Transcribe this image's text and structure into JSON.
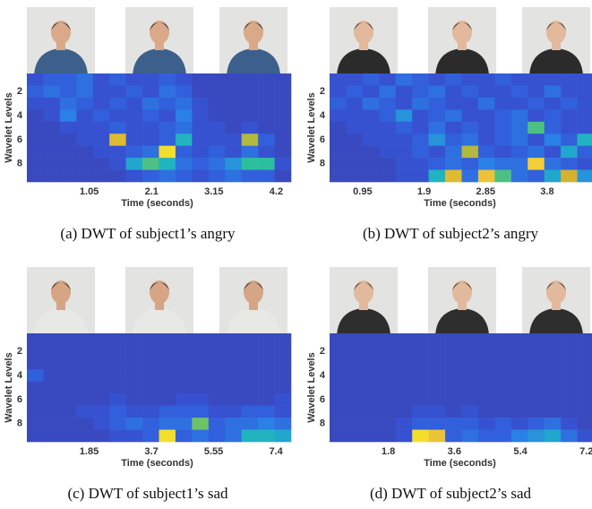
{
  "chart_data": [
    {
      "type": "heatmap",
      "caption": "(a) DWT of subject1’s angry",
      "xlabel": "Time (seconds)",
      "ylabel": "Wavelet Levels",
      "xlim": [
        0,
        4.45
      ],
      "xticks": [
        1.05,
        2.1,
        3.15,
        4.2
      ],
      "ylim": [
        0.5,
        9.5
      ],
      "yticks": [
        2,
        4,
        6,
        8
      ],
      "rows": [
        1,
        2,
        3,
        4,
        5,
        6,
        7,
        8,
        9
      ],
      "colormap": [
        "#3d3fae",
        "#3457d8",
        "#2a80e6",
        "#1fb0c8",
        "#2bbf9e",
        "#7fc35a",
        "#d2b22f",
        "#f3c63a",
        "#f5ee25"
      ],
      "values": [
        [
          0.1,
          0.15,
          0.15,
          0.2,
          0.1,
          0.15,
          0.1,
          0.1,
          0.15,
          0.1,
          0.05,
          0.05,
          0.05,
          0.05,
          0.05,
          0.05
        ],
        [
          0.15,
          0.2,
          0.15,
          0.2,
          0.1,
          0.1,
          0.15,
          0.1,
          0.2,
          0.15,
          0.05,
          0.05,
          0.05,
          0.05,
          0.05,
          0.05
        ],
        [
          0.1,
          0.1,
          0.2,
          0.15,
          0.1,
          0.15,
          0.1,
          0.2,
          0.15,
          0.2,
          0.1,
          0.05,
          0.05,
          0.05,
          0.05,
          0.05
        ],
        [
          0.05,
          0.1,
          0.25,
          0.1,
          0.15,
          0.1,
          0.1,
          0.15,
          0.1,
          0.25,
          0.1,
          0.05,
          0.05,
          0.05,
          0.05,
          0.05
        ],
        [
          0.05,
          0.05,
          0.1,
          0.1,
          0.1,
          0.15,
          0.1,
          0.1,
          0.15,
          0.2,
          0.1,
          0.1,
          0.05,
          0.1,
          0.05,
          0.05
        ],
        [
          0.05,
          0.05,
          0.05,
          0.1,
          0.1,
          0.8,
          0.1,
          0.1,
          0.15,
          0.4,
          0.1,
          0.1,
          0.1,
          0.7,
          0.15,
          0.05
        ],
        [
          0.05,
          0.05,
          0.05,
          0.05,
          0.1,
          0.1,
          0.15,
          0.2,
          0.95,
          0.15,
          0.1,
          0.15,
          0.1,
          0.2,
          0.1,
          0.05
        ],
        [
          0.05,
          0.05,
          0.05,
          0.05,
          0.05,
          0.1,
          0.35,
          0.55,
          0.4,
          0.2,
          0.15,
          0.2,
          0.3,
          0.5,
          0.5,
          0.1
        ],
        [
          0.05,
          0.05,
          0.05,
          0.05,
          0.05,
          0.05,
          0.1,
          0.15,
          0.2,
          0.15,
          0.1,
          0.15,
          0.2,
          0.15,
          0.15,
          0.05
        ]
      ]
    },
    {
      "type": "heatmap",
      "caption": "(b) DWT of subject2’s angry",
      "xlabel": "Time (seconds)",
      "ylabel": "Wavelet Levels",
      "xlim": [
        0.44,
        4.52
      ],
      "xticks": [
        0.95,
        1.9,
        2.85,
        3.8
      ],
      "ylim": [
        0.5,
        9.5
      ],
      "yticks": [
        2,
        4,
        6,
        8
      ],
      "rows": [
        1,
        2,
        3,
        4,
        5,
        6,
        7,
        8,
        9
      ],
      "colormap": [
        "#3d3fae",
        "#3457d8",
        "#2a80e6",
        "#1fb0c8",
        "#2bbf9e",
        "#7fc35a",
        "#d2b22f",
        "#f3c63a",
        "#f5ee25"
      ],
      "values": [
        [
          0.1,
          0.1,
          0.15,
          0.1,
          0.2,
          0.15,
          0.1,
          0.15,
          0.1,
          0.1,
          0.15,
          0.1,
          0.1,
          0.1,
          0.1,
          0.1
        ],
        [
          0.1,
          0.15,
          0.1,
          0.2,
          0.1,
          0.15,
          0.2,
          0.1,
          0.15,
          0.1,
          0.1,
          0.15,
          0.1,
          0.2,
          0.1,
          0.1
        ],
        [
          0.15,
          0.1,
          0.2,
          0.15,
          0.1,
          0.2,
          0.15,
          0.1,
          0.1,
          0.2,
          0.1,
          0.1,
          0.15,
          0.1,
          0.15,
          0.1
        ],
        [
          0.1,
          0.1,
          0.1,
          0.15,
          0.3,
          0.1,
          0.15,
          0.2,
          0.1,
          0.1,
          0.15,
          0.2,
          0.1,
          0.15,
          0.1,
          0.1
        ],
        [
          0.05,
          0.1,
          0.1,
          0.1,
          0.15,
          0.1,
          0.2,
          0.1,
          0.15,
          0.1,
          0.15,
          0.2,
          0.55,
          0.15,
          0.1,
          0.1
        ],
        [
          0.05,
          0.05,
          0.1,
          0.1,
          0.1,
          0.15,
          0.3,
          0.15,
          0.2,
          0.1,
          0.15,
          0.2,
          0.1,
          0.25,
          0.15,
          0.4
        ],
        [
          0.05,
          0.05,
          0.05,
          0.1,
          0.1,
          0.15,
          0.1,
          0.2,
          0.7,
          0.15,
          0.1,
          0.15,
          0.2,
          0.1,
          0.35,
          0.15
        ],
        [
          0.05,
          0.05,
          0.05,
          0.05,
          0.1,
          0.1,
          0.15,
          0.2,
          0.15,
          0.25,
          0.2,
          0.2,
          0.9,
          0.2,
          0.15,
          0.1
        ],
        [
          0.05,
          0.05,
          0.05,
          0.05,
          0.1,
          0.1,
          0.4,
          0.8,
          0.2,
          0.85,
          0.55,
          0.2,
          0.15,
          0.35,
          0.75,
          0.3
        ]
      ]
    },
    {
      "type": "heatmap",
      "caption": "(c) DWT of subject1’s sad",
      "xlabel": "Time (seconds)",
      "ylabel": "Wavelet Levels",
      "xlim": [
        0,
        7.85
      ],
      "xticks": [
        1.85,
        3.7,
        5.55,
        7.4
      ],
      "ylim": [
        0.5,
        9.5
      ],
      "yticks": [
        2,
        4,
        6,
        8
      ],
      "rows": [
        1,
        2,
        3,
        4,
        5,
        6,
        7,
        8,
        9
      ],
      "colormap": [
        "#3d3fae",
        "#3457d8",
        "#2a80e6",
        "#1fb0c8",
        "#2bbf9e",
        "#7fc35a",
        "#d2b22f",
        "#f3c63a",
        "#f5ee25"
      ],
      "values": [
        [
          0.05,
          0.05,
          0.05,
          0.05,
          0.05,
          0.05,
          0.05,
          0.05,
          0.05,
          0.05,
          0.05,
          0.05,
          0.05,
          0.05,
          0.05,
          0.05
        ],
        [
          0.05,
          0.05,
          0.05,
          0.05,
          0.05,
          0.05,
          0.05,
          0.05,
          0.05,
          0.05,
          0.05,
          0.05,
          0.05,
          0.05,
          0.05,
          0.05
        ],
        [
          0.05,
          0.05,
          0.05,
          0.05,
          0.05,
          0.05,
          0.05,
          0.05,
          0.05,
          0.05,
          0.05,
          0.05,
          0.05,
          0.05,
          0.05,
          0.05
        ],
        [
          0.15,
          0.05,
          0.05,
          0.05,
          0.05,
          0.05,
          0.05,
          0.05,
          0.05,
          0.05,
          0.05,
          0.05,
          0.05,
          0.05,
          0.05,
          0.05
        ],
        [
          0.05,
          0.05,
          0.05,
          0.05,
          0.05,
          0.05,
          0.05,
          0.05,
          0.05,
          0.05,
          0.05,
          0.05,
          0.05,
          0.05,
          0.05,
          0.05
        ],
        [
          0.05,
          0.05,
          0.05,
          0.05,
          0.05,
          0.1,
          0.05,
          0.05,
          0.05,
          0.1,
          0.1,
          0.05,
          0.05,
          0.05,
          0.05,
          0.1
        ],
        [
          0.05,
          0.05,
          0.05,
          0.1,
          0.1,
          0.15,
          0.1,
          0.1,
          0.15,
          0.15,
          0.15,
          0.1,
          0.1,
          0.15,
          0.15,
          0.1
        ],
        [
          0.05,
          0.05,
          0.05,
          0.05,
          0.1,
          0.15,
          0.2,
          0.15,
          0.2,
          0.2,
          0.6,
          0.15,
          0.2,
          0.2,
          0.25,
          0.2
        ],
        [
          0.05,
          0.05,
          0.05,
          0.05,
          0.05,
          0.1,
          0.1,
          0.15,
          0.95,
          0.15,
          0.2,
          0.15,
          0.2,
          0.4,
          0.4,
          0.35
        ]
      ]
    },
    {
      "type": "heatmap",
      "caption": "(d) DWT of subject2’s sad",
      "xlabel": "Time (seconds)",
      "ylabel": "Wavelet Levels",
      "xlim": [
        0.2,
        7.4
      ],
      "xticks": [
        1.8,
        3.6,
        5.4,
        7.2
      ],
      "ylim": [
        0.5,
        9.5
      ],
      "yticks": [
        2,
        4,
        6,
        8
      ],
      "rows": [
        1,
        2,
        3,
        4,
        5,
        6,
        7,
        8,
        9
      ],
      "colormap": [
        "#3d3fae",
        "#3457d8",
        "#2a80e6",
        "#1fb0c8",
        "#2bbf9e",
        "#7fc35a",
        "#d2b22f",
        "#f3c63a",
        "#f5ee25"
      ],
      "values": [
        [
          0.05,
          0.05,
          0.05,
          0.05,
          0.05,
          0.05,
          0.05,
          0.05,
          0.05,
          0.05,
          0.05,
          0.05,
          0.05,
          0.05,
          0.05,
          0.05
        ],
        [
          0.05,
          0.05,
          0.05,
          0.05,
          0.05,
          0.05,
          0.05,
          0.05,
          0.05,
          0.05,
          0.05,
          0.05,
          0.05,
          0.05,
          0.05,
          0.05
        ],
        [
          0.05,
          0.05,
          0.05,
          0.05,
          0.05,
          0.05,
          0.05,
          0.05,
          0.05,
          0.05,
          0.05,
          0.05,
          0.05,
          0.05,
          0.05,
          0.05
        ],
        [
          0.05,
          0.05,
          0.05,
          0.05,
          0.05,
          0.05,
          0.05,
          0.05,
          0.05,
          0.05,
          0.05,
          0.05,
          0.05,
          0.05,
          0.05,
          0.05
        ],
        [
          0.05,
          0.05,
          0.05,
          0.05,
          0.05,
          0.05,
          0.05,
          0.05,
          0.05,
          0.05,
          0.05,
          0.05,
          0.05,
          0.05,
          0.05,
          0.05
        ],
        [
          0.05,
          0.05,
          0.05,
          0.05,
          0.05,
          0.05,
          0.05,
          0.05,
          0.05,
          0.05,
          0.05,
          0.05,
          0.05,
          0.05,
          0.05,
          0.05
        ],
        [
          0.05,
          0.05,
          0.05,
          0.05,
          0.05,
          0.1,
          0.1,
          0.05,
          0.1,
          0.05,
          0.05,
          0.05,
          0.05,
          0.05,
          0.05,
          0.05
        ],
        [
          0.05,
          0.05,
          0.05,
          0.05,
          0.1,
          0.15,
          0.15,
          0.15,
          0.15,
          0.1,
          0.15,
          0.1,
          0.15,
          0.2,
          0.1,
          0.05
        ],
        [
          0.05,
          0.05,
          0.05,
          0.05,
          0.1,
          0.95,
          0.85,
          0.15,
          0.2,
          0.15,
          0.15,
          0.25,
          0.3,
          0.35,
          0.2,
          0.1
        ]
      ]
    }
  ]
}
